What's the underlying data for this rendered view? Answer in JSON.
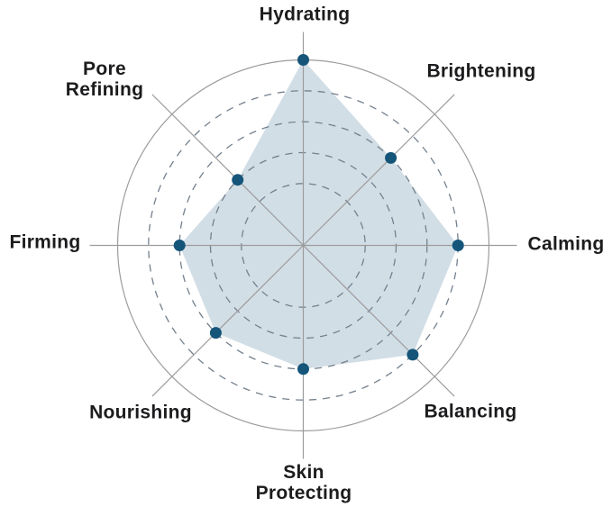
{
  "chart_data": {
    "type": "radar",
    "categories": [
      "Hydrating",
      "Brightening",
      "Calming",
      "Balancing",
      "Skin Protecting",
      "Nourishing",
      "Firming",
      "Pore Refining"
    ],
    "values": [
      6,
      4,
      5,
      5,
      4,
      4,
      4,
      3
    ],
    "axes": [
      {
        "label": "Hydrating",
        "value": 6
      },
      {
        "label": "Brightening",
        "value": 4
      },
      {
        "label": "Calming",
        "value": 5
      },
      {
        "label": "Balancing",
        "value": 5
      },
      {
        "label": "Skin\nProtecting",
        "value": 4
      },
      {
        "label": "Nourishing",
        "value": 4
      },
      {
        "label": "Firming",
        "value": 4
      },
      {
        "label": "Pore\nRefining",
        "value": 3
      }
    ],
    "scale": {
      "min": 0,
      "max": 6,
      "dashed_ring_levels": [
        2,
        3,
        4,
        5
      ],
      "outer_ring_level": 6
    },
    "layout_hints": {
      "start_axis": "top",
      "direction": "clockwise",
      "grid": "circular, dashed inner rings, solid outer ring",
      "legend": "none",
      "title": "none"
    },
    "colors": {
      "fill": "#d2dee6",
      "point": "#15557a",
      "grid": "#9c9c9c",
      "ring_dash": "#74808d",
      "label_text": "#1c1c1e",
      "background": "#ffffff"
    }
  }
}
